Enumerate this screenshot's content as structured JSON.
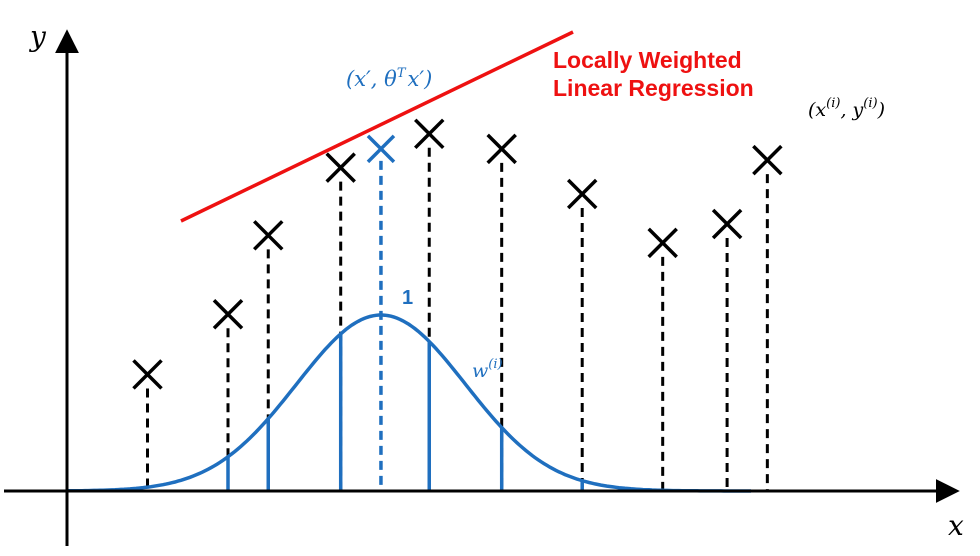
{
  "axes": {
    "x_label": "x",
    "y_label": "y"
  },
  "title": {
    "line1": "Locally Weighted",
    "line2": "Linear Regression"
  },
  "labels": {
    "query_point": "(x′, θ",
    "query_point_sup": "T",
    "query_point_tail": "x′)",
    "data_point_open": "(x",
    "data_point_sup1": "(i)",
    "data_point_mid": ", y",
    "data_point_sup2": "(i)",
    "data_point_close": ")",
    "weight_label": "w",
    "weight_sup": "(i)",
    "peak_label": "1"
  },
  "colors": {
    "data": "#000000",
    "regression_line": "#ee1111",
    "weight_curve": "#1f6fbf",
    "query": "#1f6fbf"
  },
  "chart_data": {
    "type": "scatter",
    "x_axis_label": "x",
    "y_axis_label": "y",
    "points": [
      {
        "x": 1.0,
        "y": 3.1
      },
      {
        "x": 2.0,
        "y": 4.7
      },
      {
        "x": 2.5,
        "y": 6.8
      },
      {
        "x": 3.4,
        "y": 8.6
      },
      {
        "x": 4.5,
        "y": 9.5
      },
      {
        "x": 5.4,
        "y": 9.1
      },
      {
        "x": 6.4,
        "y": 7.9
      },
      {
        "x": 7.4,
        "y": 6.6
      },
      {
        "x": 8.2,
        "y": 7.1
      },
      {
        "x": 8.7,
        "y": 8.8
      }
    ],
    "query_point": {
      "x": 3.9,
      "y": 9.1
    },
    "weight_curve": {
      "center_x": 3.9,
      "peak": 1,
      "spread": 1.05
    },
    "x_range": [
      -1,
      11
    ],
    "y_range": [
      -1,
      11.5
    ]
  }
}
